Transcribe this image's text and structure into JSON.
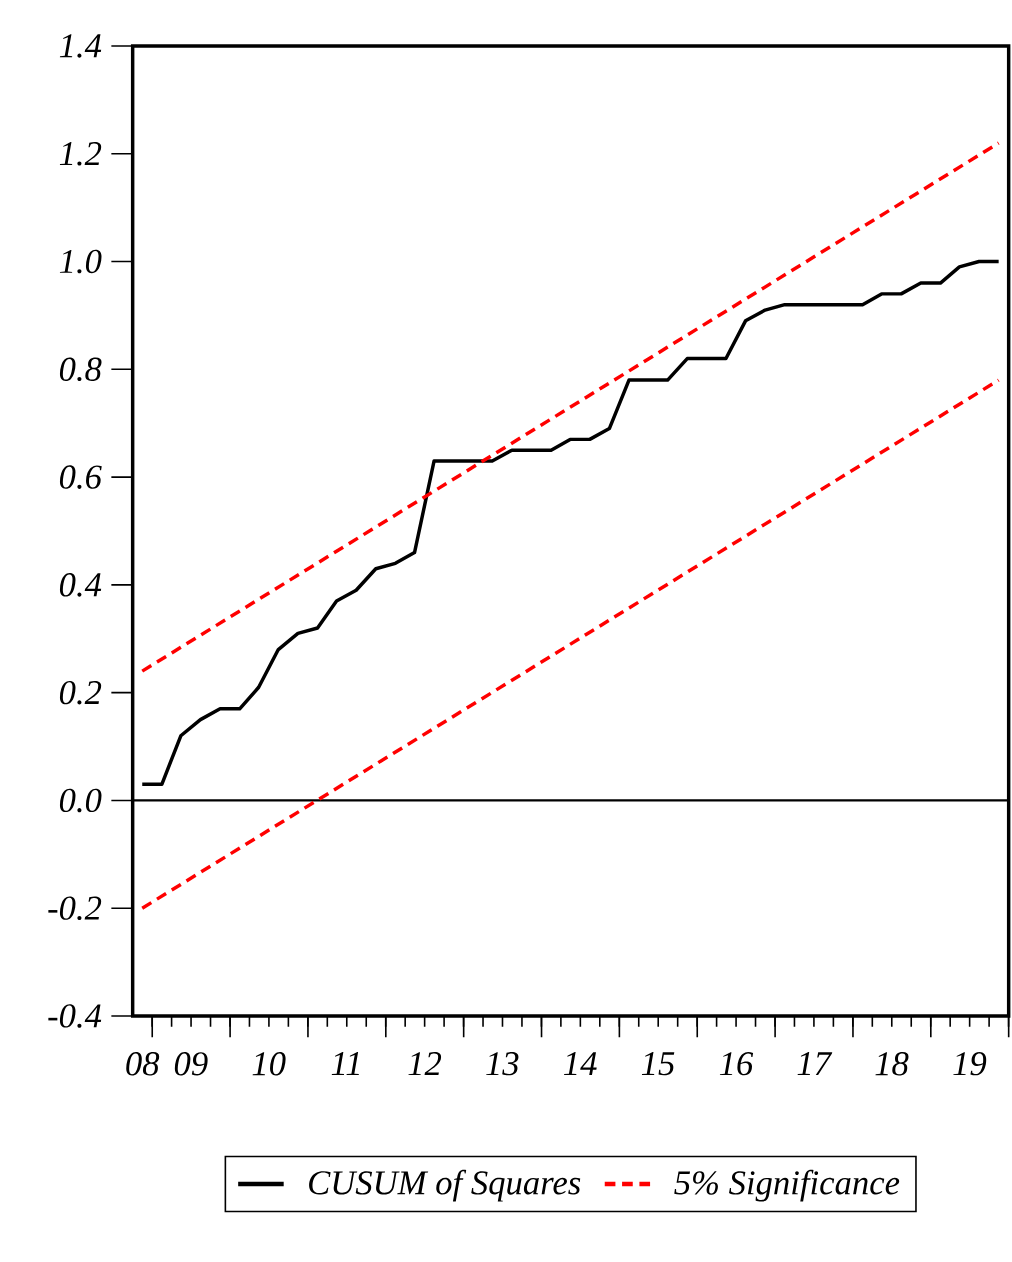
{
  "chart_data": {
    "type": "line",
    "x": [
      "2008-11-15",
      "2009-02-15",
      "2009-05-15",
      "2009-08-15",
      "2009-11-15",
      "2010-02-15",
      "2010-05-15",
      "2010-08-15",
      "2010-11-15",
      "2011-02-15",
      "2011-05-15",
      "2011-08-15",
      "2011-11-15",
      "2012-02-15",
      "2012-05-15",
      "2012-08-15",
      "2012-11-15",
      "2013-02-15",
      "2013-05-15",
      "2013-08-15",
      "2013-11-15",
      "2014-02-15",
      "2014-05-15",
      "2014-08-15",
      "2014-11-15",
      "2015-02-15",
      "2015-05-15",
      "2015-08-15",
      "2015-11-15",
      "2016-02-15",
      "2016-05-15",
      "2016-08-15",
      "2016-11-15",
      "2017-02-15",
      "2017-05-15",
      "2017-08-15",
      "2017-11-15",
      "2018-02-15",
      "2018-05-15",
      "2018-08-15",
      "2018-11-15",
      "2019-02-15",
      "2019-05-15",
      "2019-08-15",
      "2019-11-15"
    ],
    "series": [
      {
        "name": "CUSUM of Squares",
        "color": "#000000",
        "line_style": "solid",
        "values": [
          0.03,
          0.03,
          0.12,
          0.15,
          0.17,
          0.17,
          0.21,
          0.28,
          0.31,
          0.32,
          0.37,
          0.39,
          0.43,
          0.44,
          0.46,
          0.63,
          0.63,
          0.63,
          0.63,
          0.65,
          0.65,
          0.65,
          0.67,
          0.67,
          0.69,
          0.78,
          0.78,
          0.78,
          0.82,
          0.82,
          0.82,
          0.89,
          0.91,
          0.92,
          0.92,
          0.92,
          0.92,
          0.92,
          0.94,
          0.94,
          0.96,
          0.96,
          0.99,
          1.0,
          1.0
        ]
      },
      {
        "name": "5% Significance",
        "color": "#ff0000",
        "line_style": "dashed",
        "x": [
          "2008-11-15",
          "2019-11-15"
        ],
        "values": [
          0.24,
          1.22
        ]
      },
      {
        "color": "#ff0000",
        "line_style": "dashed",
        "x": [
          "2008-11-15",
          "2019-11-15"
        ],
        "values": [
          -0.2,
          0.78
        ]
      }
    ],
    "xlim": [
      "2008-10",
      "2020-01"
    ],
    "xticks": [
      {
        "value": "2008-11-15",
        "label": "08"
      },
      {
        "value": "2009-07",
        "label": "09"
      },
      {
        "value": "2010-07",
        "label": "10"
      },
      {
        "value": "2011-07",
        "label": "11"
      },
      {
        "value": "2012-07",
        "label": "12"
      },
      {
        "value": "2013-07",
        "label": "13"
      },
      {
        "value": "2014-07",
        "label": "14"
      },
      {
        "value": "2015-07",
        "label": "15"
      },
      {
        "value": "2016-07",
        "label": "16"
      },
      {
        "value": "2017-07",
        "label": "17"
      },
      {
        "value": "2018-07",
        "label": "18"
      },
      {
        "value": "2019-07",
        "label": "19"
      },
      {
        "value": "2009",
        "label": null
      },
      {
        "value": "2010",
        "label": null
      },
      {
        "value": "2011",
        "label": null
      },
      {
        "value": "2012",
        "label": null
      },
      {
        "value": "2013",
        "label": null
      },
      {
        "value": "2014",
        "label": null
      },
      {
        "value": "2015",
        "label": null
      },
      {
        "value": "2016",
        "label": null
      },
      {
        "value": "2017",
        "label": null
      },
      {
        "value": "2018",
        "label": null
      },
      {
        "value": "2019",
        "label": null
      },
      {
        "value": "2020",
        "label": null
      }
    ],
    "ylim": [
      -0.4,
      1.4
    ],
    "yticks": [
      -0.4,
      -0.2,
      {
        "value": 0,
        "label": "0.0"
      },
      0.2,
      0.4,
      0.6,
      0.8,
      {
        "value": 1,
        "label": "1.0"
      },
      1.2,
      1.4
    ],
    "ref_lines": [
      {
        "axis": "y",
        "value": 0,
        "color": "#000000"
      }
    ],
    "legend": "bottom",
    "grid": false
  }
}
